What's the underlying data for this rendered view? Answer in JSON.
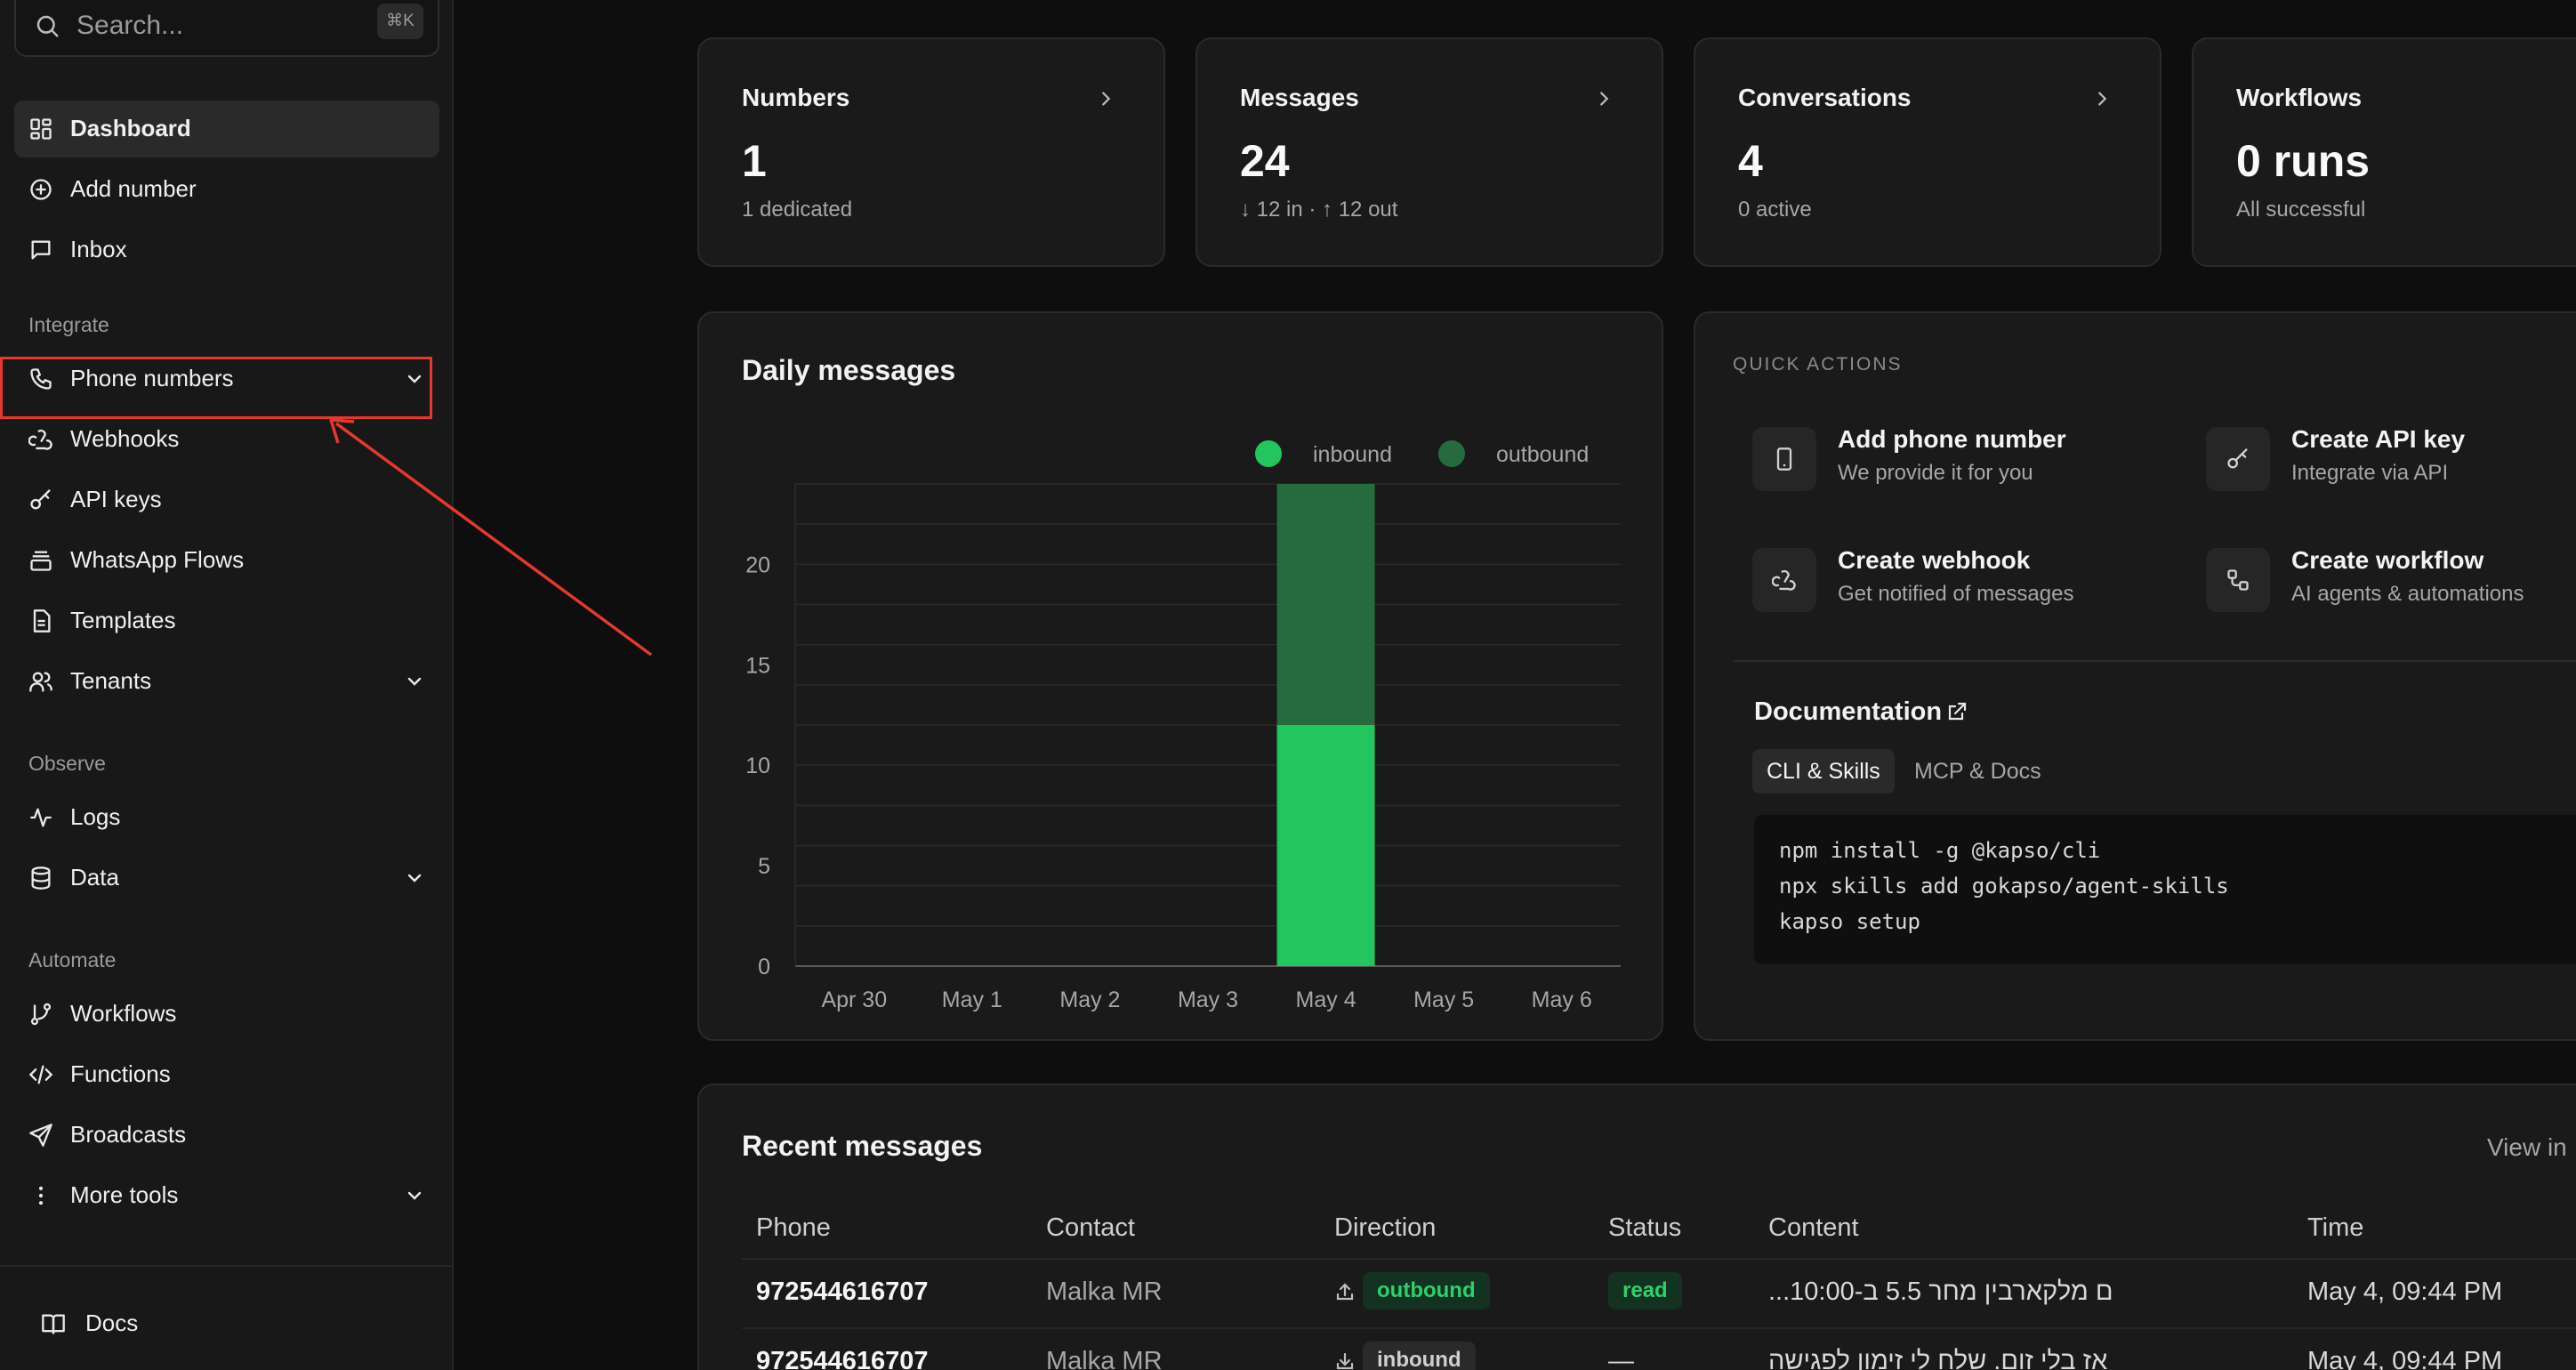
{
  "colors": {
    "inbound": "#22c55e",
    "outbound": "#256b3d",
    "accent_red": "#e5382f"
  },
  "search": {
    "placeholder": "Search...",
    "shortcut": "⌘K"
  },
  "sidebar": {
    "items": [
      {
        "label": "Dashboard",
        "icon": "dashboard-icon"
      },
      {
        "label": "Add number",
        "icon": "plus-circle-icon"
      },
      {
        "label": "Inbox",
        "icon": "chat-icon"
      }
    ],
    "integrate_label": "Integrate",
    "integrate": [
      {
        "label": "Phone numbers",
        "icon": "phone-icon"
      },
      {
        "label": "Webhooks",
        "icon": "webhook-icon"
      },
      {
        "label": "API keys",
        "icon": "key-icon"
      },
      {
        "label": "WhatsApp Flows",
        "icon": "stack-icon"
      },
      {
        "label": "Templates",
        "icon": "document-icon"
      },
      {
        "label": "Tenants",
        "icon": "users-icon"
      }
    ],
    "observe_label": "Observe",
    "observe": [
      {
        "label": "Logs",
        "icon": "activity-icon"
      },
      {
        "label": "Data",
        "icon": "database-icon"
      }
    ],
    "automate_label": "Automate",
    "automate": [
      {
        "label": "Workflows",
        "icon": "branch-icon"
      },
      {
        "label": "Functions",
        "icon": "code-icon"
      },
      {
        "label": "Broadcasts",
        "icon": "send-icon"
      },
      {
        "label": "More tools",
        "icon": "more-vertical-icon"
      }
    ],
    "docs": {
      "label": "Docs",
      "icon": "book-icon"
    }
  },
  "stats": [
    {
      "title": "Numbers",
      "value": "1",
      "sub": "1 dedicated"
    },
    {
      "title": "Messages",
      "value": "24",
      "sub": "↓ 12 in · ↑ 12 out"
    },
    {
      "title": "Conversations",
      "value": "4",
      "sub": "0 active"
    },
    {
      "title": "Workflows",
      "value": "0 runs",
      "sub": "All successful"
    }
  ],
  "chart": {
    "title": "Daily messages"
  },
  "chart_data": {
    "type": "bar",
    "stacked": true,
    "categories": [
      "Apr 30",
      "May 1",
      "May 2",
      "May 3",
      "May 4",
      "May 5",
      "May 6"
    ],
    "series": [
      {
        "name": "inbound",
        "values": [
          0,
          0,
          0,
          0,
          12,
          0,
          0
        ]
      },
      {
        "name": "outbound",
        "values": [
          0,
          0,
          0,
          0,
          12,
          0,
          0
        ]
      }
    ],
    "yticks": [
      0,
      5,
      10,
      15,
      20
    ],
    "ylim": [
      0,
      24
    ],
    "grid": true,
    "legend": "top-right"
  },
  "quick_actions": {
    "heading": "QUICK ACTIONS",
    "items": [
      {
        "title": "Add phone number",
        "sub": "We provide it for you",
        "icon": "smartphone-icon"
      },
      {
        "title": "Create API key",
        "sub": "Integrate via API",
        "icon": "key-icon"
      },
      {
        "title": "Create webhook",
        "sub": "Get notified of messages",
        "icon": "webhook-icon"
      },
      {
        "title": "Create workflow",
        "sub": "AI agents & automations",
        "icon": "workflow-icon"
      }
    ]
  },
  "documentation": {
    "title": "Documentation",
    "tabs": [
      "CLI & Skills",
      "MCP & Docs"
    ],
    "code": [
      "npm install -g @kapso/cli",
      "npx skills add gokapso/agent-skills",
      "kapso setup"
    ]
  },
  "recent": {
    "title": "Recent messages",
    "view_link": "View in",
    "columns": [
      "Phone",
      "Contact",
      "Direction",
      "Status",
      "Content",
      "Time"
    ],
    "rows": [
      {
        "phone": "972544616707",
        "contact": "Malka MR",
        "direction": "outbound",
        "status": "read",
        "content": "ם מלקארבין מחר 5.5 ב-10:00...",
        "time": "May 4, 09:44 PM"
      },
      {
        "phone": "972544616707",
        "contact": "Malka MR",
        "direction": "inbound",
        "status": "—",
        "content": "אז בלי זום. שלח לי זימון לפגישה",
        "time": "May 4, 09:44 PM"
      }
    ]
  }
}
